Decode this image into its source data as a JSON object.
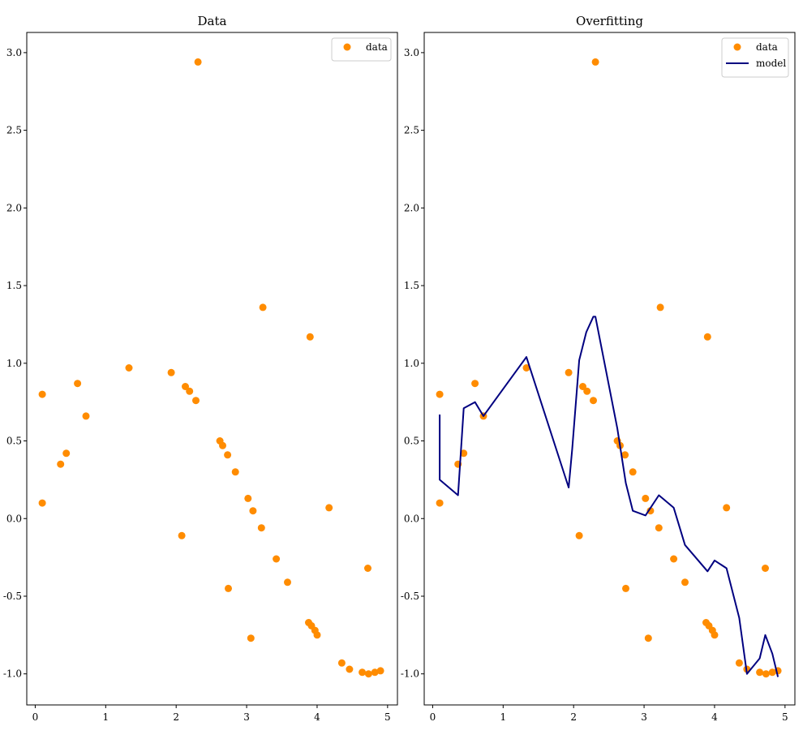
{
  "chart_data": [
    {
      "type": "scatter",
      "title": "Data",
      "xlabel": "",
      "ylabel": "",
      "xlim": [
        -0.12,
        5.14
      ],
      "ylim": [
        -1.2,
        3.13
      ],
      "xticks": [
        0,
        1,
        2,
        3,
        4,
        5
      ],
      "xtick_labels": [
        "0",
        "1",
        "2",
        "3",
        "4",
        "5"
      ],
      "yticks": [
        -1.0,
        -0.5,
        0.0,
        0.5,
        1.0,
        1.5,
        2.0,
        2.5,
        3.0
      ],
      "ytick_labels": [
        "-1.0",
        "-0.5",
        "0.0",
        "0.5",
        "1.0",
        "1.5",
        "2.0",
        "2.5",
        "3.0"
      ],
      "grid": false,
      "legend_position": "top-right",
      "series": [
        {
          "name": "data",
          "kind": "scatter",
          "color": "#ff8c00",
          "points": [
            [
              0.1,
              0.8
            ],
            [
              0.1,
              0.1
            ],
            [
              0.36,
              0.35
            ],
            [
              0.44,
              0.42
            ],
            [
              0.6,
              0.87
            ],
            [
              0.72,
              0.66
            ],
            [
              1.33,
              0.97
            ],
            [
              1.93,
              0.94
            ],
            [
              2.08,
              -0.11
            ],
            [
              2.13,
              0.85
            ],
            [
              2.19,
              0.82
            ],
            [
              2.28,
              0.76
            ],
            [
              2.31,
              2.94
            ],
            [
              2.62,
              0.5
            ],
            [
              2.66,
              0.47
            ],
            [
              2.73,
              0.41
            ],
            [
              2.74,
              -0.45
            ],
            [
              2.84,
              0.3
            ],
            [
              3.02,
              0.13
            ],
            [
              3.06,
              -0.77
            ],
            [
              3.09,
              0.05
            ],
            [
              3.21,
              -0.06
            ],
            [
              3.23,
              1.36
            ],
            [
              3.42,
              -0.26
            ],
            [
              3.58,
              -0.41
            ],
            [
              3.88,
              -0.67
            ],
            [
              3.9,
              1.17
            ],
            [
              3.92,
              -0.69
            ],
            [
              3.97,
              -0.72
            ],
            [
              4.0,
              -0.75
            ],
            [
              4.17,
              0.07
            ],
            [
              4.35,
              -0.93
            ],
            [
              4.46,
              -0.97
            ],
            [
              4.64,
              -0.99
            ],
            [
              4.72,
              -0.32
            ],
            [
              4.73,
              -1.0
            ],
            [
              4.82,
              -0.99
            ],
            [
              4.9,
              -0.98
            ]
          ]
        }
      ]
    },
    {
      "type": "scatter",
      "title": "Overfitting",
      "xlabel": "",
      "ylabel": "",
      "xlim": [
        -0.12,
        5.14
      ],
      "ylim": [
        -1.2,
        3.13
      ],
      "xticks": [
        0,
        1,
        2,
        3,
        4,
        5
      ],
      "xtick_labels": [
        "0",
        "1",
        "2",
        "3",
        "4",
        "5"
      ],
      "yticks": [
        -1.0,
        -0.5,
        0.0,
        0.5,
        1.0,
        1.5,
        2.0,
        2.5,
        3.0
      ],
      "ytick_labels": [
        "-1.0",
        "-0.5",
        "0.0",
        "0.5",
        "1.0",
        "1.5",
        "2.0",
        "2.5",
        "3.0"
      ],
      "grid": false,
      "legend_position": "top-right",
      "series": [
        {
          "name": "data",
          "kind": "scatter",
          "color": "#ff8c00",
          "points": [
            [
              0.1,
              0.8
            ],
            [
              0.1,
              0.1
            ],
            [
              0.36,
              0.35
            ],
            [
              0.44,
              0.42
            ],
            [
              0.6,
              0.87
            ],
            [
              0.72,
              0.66
            ],
            [
              1.33,
              0.97
            ],
            [
              1.93,
              0.94
            ],
            [
              2.08,
              -0.11
            ],
            [
              2.13,
              0.85
            ],
            [
              2.19,
              0.82
            ],
            [
              2.28,
              0.76
            ],
            [
              2.31,
              2.94
            ],
            [
              2.62,
              0.5
            ],
            [
              2.66,
              0.47
            ],
            [
              2.73,
              0.41
            ],
            [
              2.74,
              -0.45
            ],
            [
              2.84,
              0.3
            ],
            [
              3.02,
              0.13
            ],
            [
              3.06,
              -0.77
            ],
            [
              3.09,
              0.05
            ],
            [
              3.21,
              -0.06
            ],
            [
              3.23,
              1.36
            ],
            [
              3.42,
              -0.26
            ],
            [
              3.58,
              -0.41
            ],
            [
              3.88,
              -0.67
            ],
            [
              3.9,
              1.17
            ],
            [
              3.92,
              -0.69
            ],
            [
              3.97,
              -0.72
            ],
            [
              4.0,
              -0.75
            ],
            [
              4.17,
              0.07
            ],
            [
              4.35,
              -0.93
            ],
            [
              4.46,
              -0.97
            ],
            [
              4.64,
              -0.99
            ],
            [
              4.72,
              -0.32
            ],
            [
              4.73,
              -1.0
            ],
            [
              4.82,
              -0.99
            ],
            [
              4.9,
              -0.98
            ]
          ]
        },
        {
          "name": "model",
          "kind": "line",
          "color": "#000080",
          "points": [
            [
              0.1,
              0.67
            ],
            [
              0.1,
              0.25
            ],
            [
              0.36,
              0.15
            ],
            [
              0.44,
              0.71
            ],
            [
              0.6,
              0.75
            ],
            [
              0.72,
              0.66
            ],
            [
              1.33,
              1.04
            ],
            [
              1.93,
              0.2
            ],
            [
              1.98,
              0.45
            ],
            [
              2.08,
              1.02
            ],
            [
              2.18,
              1.2
            ],
            [
              2.28,
              1.3
            ],
            [
              2.31,
              1.3
            ],
            [
              2.62,
              0.58
            ],
            [
              2.74,
              0.23
            ],
            [
              2.84,
              0.05
            ],
            [
              3.02,
              0.02
            ],
            [
              3.21,
              0.15
            ],
            [
              3.42,
              0.07
            ],
            [
              3.58,
              -0.17
            ],
            [
              3.9,
              -0.34
            ],
            [
              4.0,
              -0.27
            ],
            [
              4.17,
              -0.32
            ],
            [
              4.35,
              -0.64
            ],
            [
              4.46,
              -1.0
            ],
            [
              4.64,
              -0.9
            ],
            [
              4.72,
              -0.75
            ],
            [
              4.82,
              -0.87
            ],
            [
              4.9,
              -1.02
            ]
          ]
        }
      ]
    }
  ]
}
